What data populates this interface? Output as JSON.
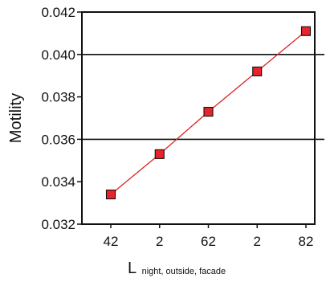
{
  "chart_data": {
    "type": "line",
    "x_tick_labels": [
      "42",
      "2",
      "62",
      "2",
      "82"
    ],
    "x": [
      1,
      2,
      3,
      4,
      5
    ],
    "series": [
      {
        "values": [
          0.0334,
          0.0353,
          0.0373,
          0.0392,
          0.0411
        ]
      }
    ],
    "ylim": [
      0.032,
      0.042
    ],
    "y_ticks": [
      0.032,
      0.034,
      0.036,
      0.038,
      0.04,
      0.042
    ],
    "y_tick_labels": [
      "0.032",
      "0.034",
      "0.036",
      "0.038",
      "0.040",
      "0.042"
    ],
    "grid_y": [
      0.036,
      0.04
    ],
    "ylabel": "Motility",
    "xlabel_main": "L",
    "xlabel_sub": "night, outside, facade",
    "grid": true,
    "legend": "none",
    "colors": {
      "line": "#dd2222",
      "marker_fill": "#e8232a",
      "marker_stroke": "#111111",
      "axis": "#111111"
    }
  }
}
